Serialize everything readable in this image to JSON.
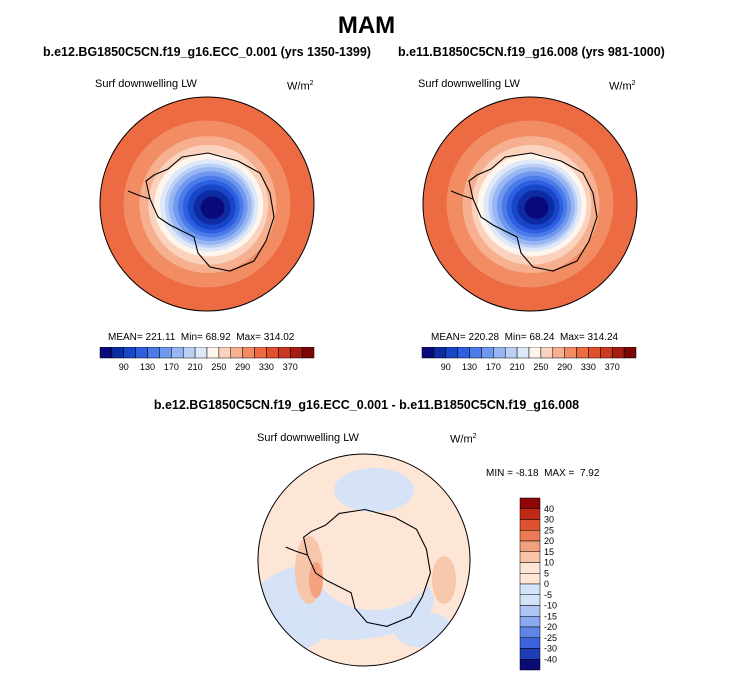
{
  "suptitle": "MAM",
  "variable_label": "Surf downwelling LW",
  "units": {
    "base": "W/m",
    "exp": "2"
  },
  "diff_title": "b.e12.BG1850C5CN.f19_g16.ECC_0.001 - b.e11.B1850C5CN.f19_g16.008",
  "seq_colors": [
    "#0a0a7a",
    "#0d2ca3",
    "#1746c8",
    "#2d5fe0",
    "#4a7be8",
    "#6f99ef",
    "#97b6f3",
    "#bcd0f6",
    "#dde8f8",
    "#fff5ec",
    "#fad2bd",
    "#f6b090",
    "#f28c63",
    "#ec6b42",
    "#e1502c",
    "#c93a20",
    "#a51d13",
    "#7a0606"
  ],
  "diff_colors": [
    "#0b0b74",
    "#1e3eb8",
    "#3b63de",
    "#5f85e8",
    "#88a8ef",
    "#aec5f4",
    "#d4e2f8",
    "#fde6d6",
    "#f8c4a8",
    "#f3a07c",
    "#ec7a52",
    "#de5230",
    "#c02a14",
    "#8f0606"
  ],
  "chart_data": [
    {
      "type": "heatmap",
      "title": "b.e12.BG1850C5CN.f19_g16.ECC_0.001 (yrs 1350-1399)",
      "mean": "221.11",
      "min": "68.92",
      "max": "314.02",
      "colorbar_ticks": [
        "90",
        "130",
        "170",
        "210",
        "250",
        "290",
        "330",
        "370"
      ]
    },
    {
      "type": "heatmap",
      "title": "b.e11.B1850C5CN.f19_g16.008 (yrs 981-1000)",
      "mean": "220.28",
      "min": "68.24",
      "max": "314.24",
      "colorbar_ticks": [
        "90",
        "130",
        "170",
        "210",
        "250",
        "290",
        "330",
        "370"
      ]
    },
    {
      "type": "heatmap",
      "title": "b.e12.BG1850C5CN.f19_g16.ECC_0.001 - b.e11.B1850C5CN.f19_g16.008",
      "min": "-8.18",
      "max": "7.92",
      "colorbar_ticks": [
        "40",
        "30",
        "25",
        "20",
        "15",
        "10",
        "5",
        "0",
        "-5",
        "-10",
        "-15",
        "-20",
        "-25",
        "-30",
        "-40"
      ]
    }
  ]
}
